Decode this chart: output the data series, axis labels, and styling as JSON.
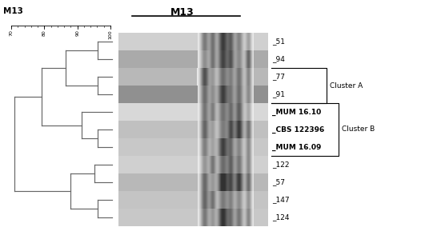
{
  "title_left": "M13",
  "title_center": "M13",
  "background_color": "#ffffff",
  "dendrogram_color": "#666666",
  "labels": [
    "_51",
    "_94",
    "_77",
    "_91",
    "_MUM 16.10",
    "_CBS 122396",
    "_MUM 16.09",
    "_122",
    "_57",
    "_147",
    "_124"
  ],
  "bold_labels": [
    "_MUM 16.10",
    "_CBS 122396",
    "_MUM 16.09"
  ],
  "cluster_a_text": "Cluster A",
  "cluster_b_text": "Cluster B",
  "scale_ticks": [
    70,
    80,
    90,
    100
  ],
  "gel_bg_colors": [
    "#d0d0d0",
    "#aaaaaa",
    "#b8b8b8",
    "#909090",
    "#d8d8d8",
    "#c0c0c0",
    "#c8c8c8",
    "#d0d0d0",
    "#b8b8b8",
    "#c4c4c4",
    "#c8c8c8"
  ],
  "n_rows": 11
}
